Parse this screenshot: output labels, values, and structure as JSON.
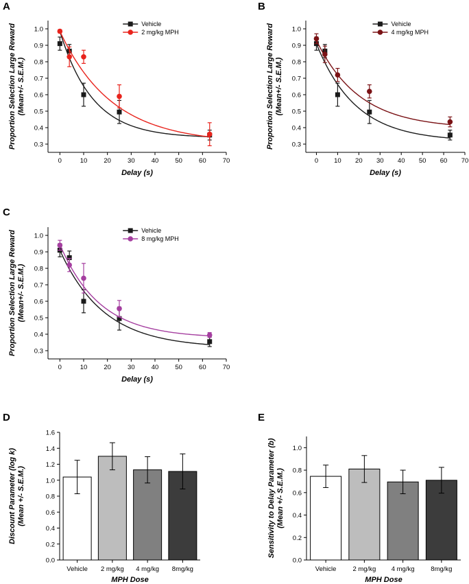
{
  "chart_data": [
    {
      "panel": "A",
      "type": "scatter",
      "xlabel": "Delay (s)",
      "ylabel_line1": "Proportion Selection Large Reward",
      "ylabel_line2": "(Mean+/- S.E.M.)",
      "xlim": [
        -5,
        70
      ],
      "ylim": [
        0.25,
        1.05
      ],
      "xticks": [
        0,
        10,
        20,
        30,
        40,
        50,
        60,
        70
      ],
      "yticks": [
        0.3,
        0.4,
        0.5,
        0.6,
        0.7,
        0.8,
        0.9,
        1.0
      ],
      "legend_position": "top-right",
      "series": [
        {
          "name": "Vehicle",
          "marker": "square",
          "color": "#1a1a1a",
          "x": [
            0,
            4,
            10,
            25,
            63
          ],
          "y": [
            0.91,
            0.865,
            0.6,
            0.495,
            0.355
          ],
          "err": [
            0.04,
            0.04,
            0.07,
            0.07,
            0.03
          ],
          "fit": {
            "a": 0.647,
            "k": 0.0723,
            "c": 0.338
          }
        },
        {
          "name": "2 mg/kg MPH",
          "marker": "circle",
          "color": "#e8231c",
          "x": [
            0,
            4,
            10,
            25,
            63
          ],
          "y": [
            0.985,
            0.83,
            0.83,
            0.59,
            0.36
          ],
          "err": [
            0.01,
            0.06,
            0.04,
            0.07,
            0.07
          ],
          "fit": {
            "a": 0.68,
            "k": 0.0455,
            "c": 0.305
          }
        }
      ]
    },
    {
      "panel": "B",
      "type": "scatter",
      "xlabel": "Delay (s)",
      "ylabel_line1": "Proportion Selection Large Reward",
      "ylabel_line2": "(Mean+/- S.E.M.)",
      "xlim": [
        -5,
        70
      ],
      "ylim": [
        0.25,
        1.05
      ],
      "xticks": [
        0,
        10,
        20,
        30,
        40,
        50,
        60,
        70
      ],
      "yticks": [
        0.3,
        0.4,
        0.5,
        0.6,
        0.7,
        0.8,
        0.9,
        1.0
      ],
      "legend_position": "top-right",
      "series": [
        {
          "name": "Vehicle",
          "marker": "square",
          "color": "#1a1a1a",
          "x": [
            0,
            4,
            10,
            25,
            63
          ],
          "y": [
            0.91,
            0.865,
            0.6,
            0.495,
            0.355
          ],
          "err": [
            0.04,
            0.04,
            0.07,
            0.07,
            0.03
          ],
          "fit": {
            "a": 0.593,
            "k": 0.054,
            "c": 0.317
          }
        },
        {
          "name": "4 mg/kg MPH",
          "marker": "circle",
          "color": "#7a1215",
          "x": [
            0,
            4,
            10,
            25,
            63
          ],
          "y": [
            0.94,
            0.845,
            0.72,
            0.62,
            0.435
          ],
          "err": [
            0.03,
            0.05,
            0.04,
            0.04,
            0.03
          ],
          "fit": {
            "a": 0.535,
            "k": 0.0494,
            "c": 0.395
          }
        }
      ]
    },
    {
      "panel": "C",
      "type": "scatter",
      "xlabel": "Delay (s)",
      "ylabel_line1": "Proportion Selection Large Reward",
      "ylabel_line2": "(Mean+/- S.E.M.)",
      "xlim": [
        -5,
        70
      ],
      "ylim": [
        0.25,
        1.05
      ],
      "xticks": [
        0,
        10,
        20,
        30,
        40,
        50,
        60,
        70
      ],
      "yticks": [
        0.3,
        0.4,
        0.5,
        0.6,
        0.7,
        0.8,
        0.9,
        1.0
      ],
      "legend_position": "top-right",
      "series": [
        {
          "name": "Vehicle",
          "marker": "square",
          "color": "#1a1a1a",
          "x": [
            0,
            4,
            10,
            25,
            63
          ],
          "y": [
            0.91,
            0.865,
            0.6,
            0.495,
            0.355
          ],
          "err": [
            0.04,
            0.04,
            0.07,
            0.07,
            0.03
          ],
          "fit": {
            "a": 0.593,
            "k": 0.054,
            "c": 0.317
          }
        },
        {
          "name": "8 mg/kg MPH",
          "marker": "circle",
          "color": "#a53fa0",
          "x": [
            0,
            4,
            10,
            25,
            63
          ],
          "y": [
            0.94,
            0.82,
            0.74,
            0.555,
            0.395
          ],
          "err": [
            0.03,
            0.04,
            0.09,
            0.05,
            0.015
          ],
          "fit": {
            "a": 0.568,
            "k": 0.0597,
            "c": 0.377
          }
        }
      ]
    },
    {
      "panel": "D",
      "type": "bar",
      "xlabel": "MPH Dose",
      "ylabel_line1": "Discount Parameter (log k)",
      "ylabel_line2": "(Mean +/- S.E.M.)",
      "categories": [
        "Vehicle",
        "2 mg/kg",
        "4 mg/kg",
        "8mg/kg"
      ],
      "values": [
        1.04,
        1.3,
        1.13,
        1.11
      ],
      "err": [
        0.21,
        0.17,
        0.165,
        0.22
      ],
      "colors": [
        "#ffffff",
        "#bdbdbd",
        "#808080",
        "#3c3c3c"
      ],
      "ylim": [
        0,
        1.6
      ],
      "yticks": [
        0.0,
        0.2,
        0.4,
        0.6,
        0.8,
        1.0,
        1.2,
        1.4,
        1.6
      ]
    },
    {
      "panel": "E",
      "type": "bar",
      "xlabel": "MPH Dose",
      "ylabel_line1": "Sensitivity to Delay Parameter (b)",
      "ylabel_line2": "(Mean +/- S.E.M.)",
      "categories": [
        "Vehicle",
        "2 mg/kg",
        "4 mg/kg",
        "8mg/kg"
      ],
      "values": [
        0.745,
        0.81,
        0.695,
        0.71
      ],
      "err": [
        0.1,
        0.12,
        0.105,
        0.115
      ],
      "colors": [
        "#ffffff",
        "#bdbdbd",
        "#808080",
        "#3c3c3c"
      ],
      "ylim": [
        0,
        1.1
      ],
      "yticks": [
        0.0,
        0.2,
        0.4,
        0.6,
        0.8,
        1.0
      ]
    }
  ]
}
